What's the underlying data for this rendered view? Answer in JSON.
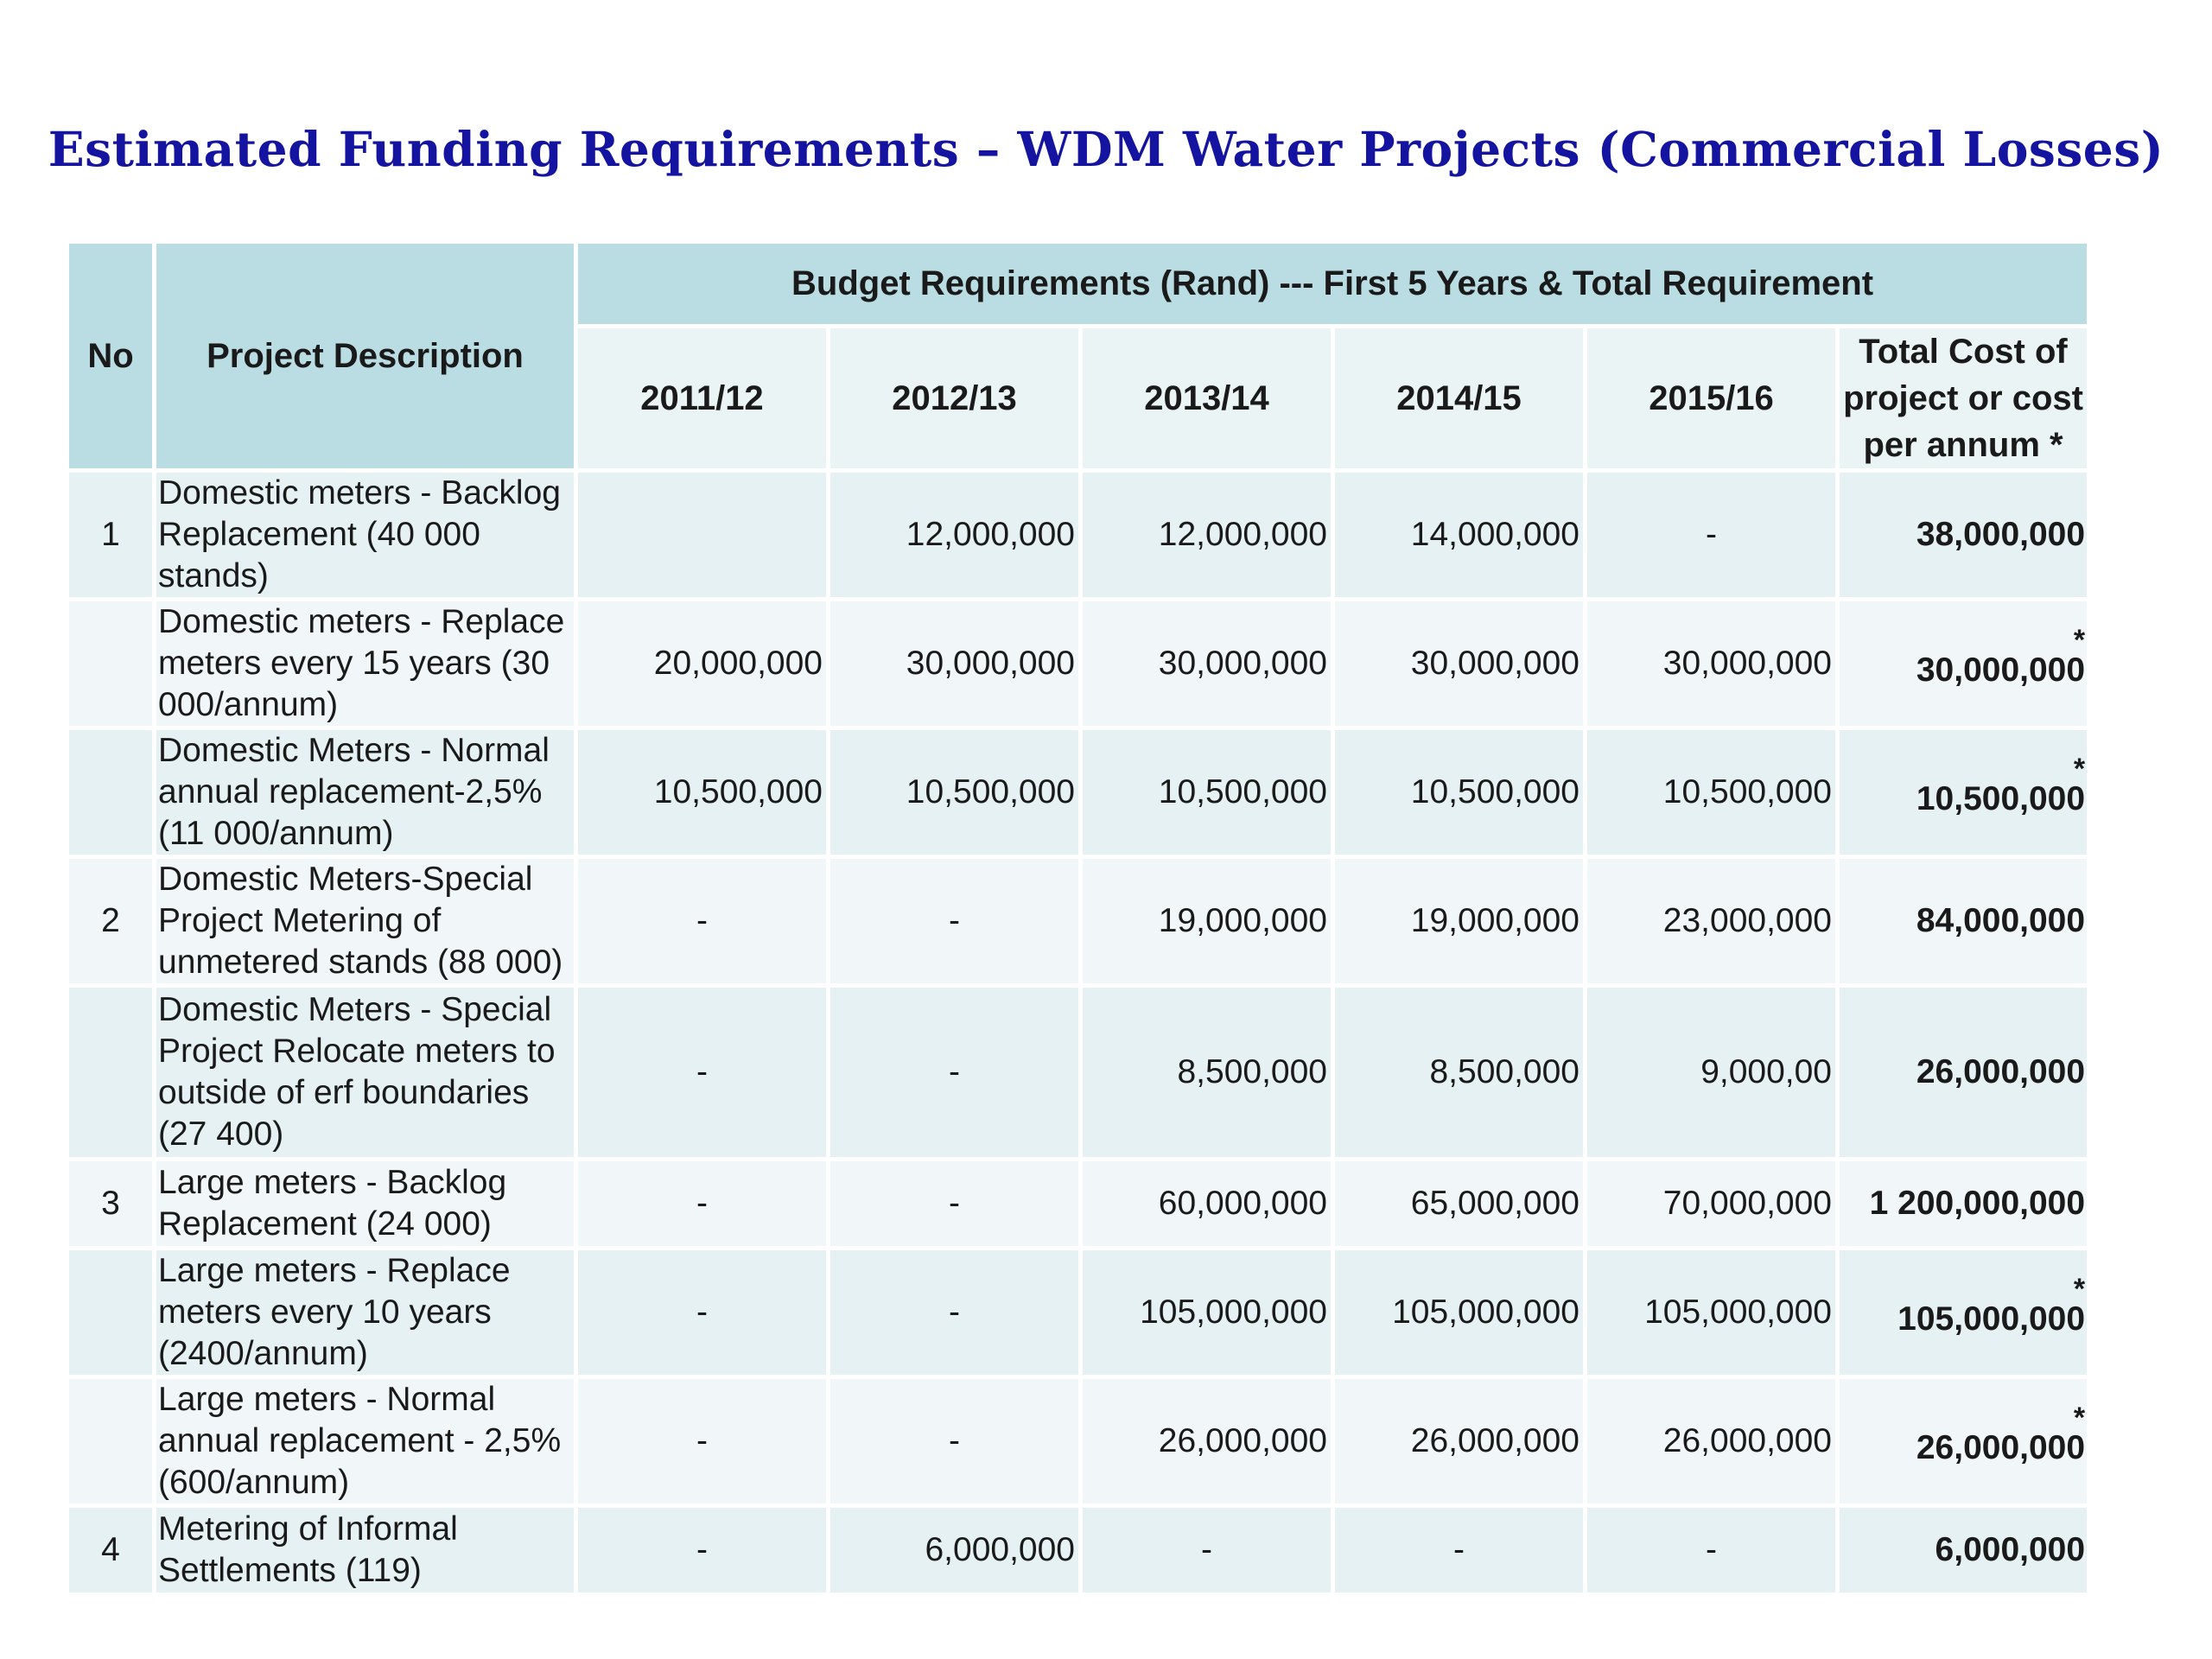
{
  "title": "Estimated Funding Requirements – WDM Water Projects (Commercial Losses)",
  "table": {
    "header": {
      "no": "No",
      "description": "Project Description",
      "group": "Budget Requirements (Rand) --- First 5 Years & Total Requirement",
      "years": [
        "2011/12",
        "2012/13",
        "2013/14",
        "2014/15",
        "2015/16"
      ],
      "total": "Total Cost of project or cost per annum *"
    },
    "rows": [
      {
        "no": "1",
        "description": "Domestic meters - Backlog Replacement (40 000 stands)",
        "values": [
          "",
          "12,000,000",
          "12,000,000",
          "14,000,000",
          "-"
        ],
        "total": "38,000,000",
        "asterisk": ""
      },
      {
        "no": "",
        "description": "Domestic meters - Replace meters every 15 years (30 000/annum)",
        "values": [
          "20,000,000",
          "30,000,000",
          "30,000,000",
          "30,000,000",
          "30,000,000"
        ],
        "total": "30,000,000",
        "asterisk": "*"
      },
      {
        "no": "",
        "description": "Domestic Meters - Normal annual replacement-2,5% (11 000/annum)",
        "values": [
          "10,500,000",
          "10,500,000",
          "10,500,000",
          "10,500,000",
          "10,500,000"
        ],
        "total": "10,500,000",
        "asterisk": "*"
      },
      {
        "no": "2",
        "description": "Domestic Meters-Special Project Metering of unmetered stands (88 000)",
        "values": [
          "-",
          "-",
          "19,000,000",
          "19,000,000",
          "23,000,000"
        ],
        "total": "84,000,000",
        "asterisk": ""
      },
      {
        "no": "",
        "description": "Domestic Meters - Special Project Relocate meters to outside of erf boundaries (27 400)",
        "values": [
          "-",
          "-",
          "8,500,000",
          "8,500,000",
          "9,000,00"
        ],
        "total": "26,000,000",
        "asterisk": ""
      },
      {
        "no": "3",
        "description": "Large meters - Backlog Replacement (24 000)",
        "values": [
          "-",
          "-",
          "60,000,000",
          "65,000,000",
          "70,000,000"
        ],
        "total": "1 200,000,000",
        "asterisk": ""
      },
      {
        "no": "",
        "description": "Large meters - Replace meters every 10 years (2400/annum)",
        "values": [
          "-",
          "-",
          "105,000,000",
          "105,000,000",
          "105,000,000"
        ],
        "total": "105,000,000",
        "asterisk": "*"
      },
      {
        "no": "",
        "description": "Large meters - Normal annual replacement - 2,5% (600/annum)",
        "values": [
          "-",
          "-",
          "26,000,000",
          "26,000,000",
          "26,000,000"
        ],
        "total": "26,000,000",
        "asterisk": "*"
      },
      {
        "no": "4",
        "description": "Metering of Informal Settlements (119)",
        "values": [
          "-",
          "6,000,000",
          "-",
          "-",
          "-"
        ],
        "total": "6,000,000",
        "asterisk": ""
      }
    ]
  }
}
